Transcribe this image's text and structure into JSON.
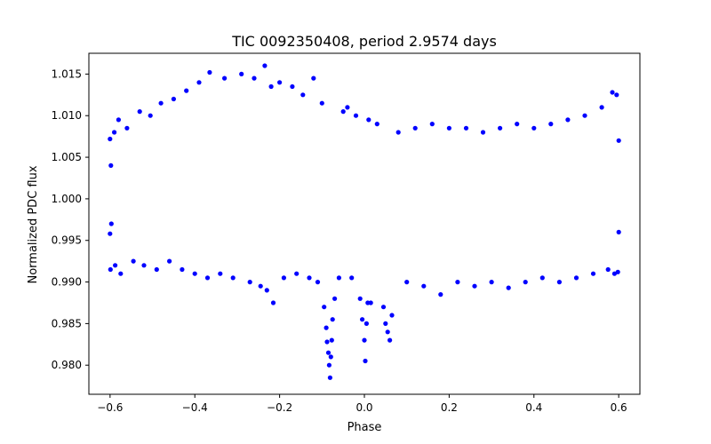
{
  "chart_data": {
    "type": "scatter",
    "title": "TIC 0092350408, period 2.9574 days",
    "xlabel": "Phase",
    "ylabel": "Normalized PDC flux",
    "xlim": [
      -0.65,
      0.65
    ],
    "ylim": [
      0.9765,
      1.0175
    ],
    "x_ticks": [
      -0.6,
      -0.4,
      -0.2,
      0.0,
      0.2,
      0.4,
      0.6
    ],
    "x_tick_labels": [
      "−0.6",
      "−0.4",
      "−0.2",
      "0.0",
      "0.2",
      "0.4",
      "0.6"
    ],
    "y_ticks": [
      0.98,
      0.985,
      0.99,
      0.995,
      1.0,
      1.005,
      1.01,
      1.015
    ],
    "y_tick_labels": [
      "0.980",
      "0.985",
      "0.990",
      "0.995",
      "1.000",
      "1.005",
      "1.010",
      "1.015"
    ],
    "grid": false,
    "marker_color": "#0000ff",
    "series": [
      {
        "points": [
          [
            -0.6,
            1.0072
          ],
          [
            -0.6,
            0.9958
          ],
          [
            -0.599,
            0.9915
          ],
          [
            -0.598,
            1.004
          ],
          [
            -0.597,
            0.997
          ],
          [
            -0.59,
            1.008
          ],
          [
            -0.588,
            0.992
          ],
          [
            -0.58,
            1.0095
          ],
          [
            -0.575,
            0.991
          ],
          [
            -0.56,
            1.0085
          ],
          [
            -0.545,
            0.9925
          ],
          [
            -0.53,
            1.0105
          ],
          [
            -0.52,
            0.992
          ],
          [
            -0.505,
            1.01
          ],
          [
            -0.49,
            0.9915
          ],
          [
            -0.48,
            1.0115
          ],
          [
            -0.46,
            0.9925
          ],
          [
            -0.45,
            1.012
          ],
          [
            -0.43,
            0.9915
          ],
          [
            -0.42,
            1.013
          ],
          [
            -0.4,
            0.991
          ],
          [
            -0.39,
            1.014
          ],
          [
            -0.37,
            0.9905
          ],
          [
            -0.365,
            1.0152
          ],
          [
            -0.34,
            0.991
          ],
          [
            -0.33,
            1.0145
          ],
          [
            -0.31,
            0.9905
          ],
          [
            -0.29,
            1.015
          ],
          [
            -0.27,
            0.99
          ],
          [
            -0.26,
            1.0145
          ],
          [
            -0.245,
            0.9895
          ],
          [
            -0.235,
            1.016
          ],
          [
            -0.23,
            0.989
          ],
          [
            -0.22,
            1.0135
          ],
          [
            -0.215,
            0.9875
          ],
          [
            -0.2,
            1.014
          ],
          [
            -0.19,
            0.9905
          ],
          [
            -0.17,
            1.0135
          ],
          [
            -0.16,
            0.991
          ],
          [
            -0.145,
            1.0125
          ],
          [
            -0.13,
            0.9905
          ],
          [
            -0.12,
            1.0145
          ],
          [
            -0.11,
            0.99
          ],
          [
            -0.1,
            1.0115
          ],
          [
            -0.095,
            0.987
          ],
          [
            -0.09,
            0.9845
          ],
          [
            -0.088,
            0.9828
          ],
          [
            -0.085,
            0.9815
          ],
          [
            -0.083,
            0.98
          ],
          [
            -0.081,
            0.9785
          ],
          [
            -0.079,
            0.981
          ],
          [
            -0.077,
            0.983
          ],
          [
            -0.075,
            0.9855
          ],
          [
            -0.07,
            0.988
          ],
          [
            -0.06,
            0.9905
          ],
          [
            -0.05,
            1.0105
          ],
          [
            -0.04,
            1.011
          ],
          [
            -0.03,
            0.9905
          ],
          [
            -0.02,
            1.01
          ],
          [
            -0.01,
            0.988
          ],
          [
            -0.005,
            0.9855
          ],
          [
            0.0,
            0.983
          ],
          [
            0.002,
            0.9805
          ],
          [
            0.005,
            0.985
          ],
          [
            0.008,
            0.9875
          ],
          [
            0.01,
            1.0095
          ],
          [
            0.015,
            0.9875
          ],
          [
            0.03,
            1.009
          ],
          [
            0.045,
            0.987
          ],
          [
            0.05,
            0.985
          ],
          [
            0.055,
            0.984
          ],
          [
            0.06,
            0.983
          ],
          [
            0.065,
            0.986
          ],
          [
            0.08,
            1.008
          ],
          [
            0.1,
            0.99
          ],
          [
            0.12,
            1.0085
          ],
          [
            0.14,
            0.9895
          ],
          [
            0.16,
            1.009
          ],
          [
            0.18,
            0.9885
          ],
          [
            0.2,
            1.0085
          ],
          [
            0.22,
            0.99
          ],
          [
            0.24,
            1.0085
          ],
          [
            0.26,
            0.9895
          ],
          [
            0.28,
            1.008
          ],
          [
            0.3,
            0.99
          ],
          [
            0.32,
            1.0085
          ],
          [
            0.34,
            0.9893
          ],
          [
            0.36,
            1.009
          ],
          [
            0.38,
            0.99
          ],
          [
            0.4,
            1.0085
          ],
          [
            0.42,
            0.9905
          ],
          [
            0.44,
            1.009
          ],
          [
            0.46,
            0.99
          ],
          [
            0.48,
            1.0095
          ],
          [
            0.5,
            0.9905
          ],
          [
            0.52,
            1.01
          ],
          [
            0.54,
            0.991
          ],
          [
            0.56,
            1.011
          ],
          [
            0.575,
            0.9915
          ],
          [
            0.585,
            1.0128
          ],
          [
            0.59,
            0.991
          ],
          [
            0.595,
            1.0125
          ],
          [
            0.598,
            0.9912
          ],
          [
            0.6,
            1.007
          ],
          [
            0.6,
            0.996
          ]
        ]
      }
    ]
  }
}
